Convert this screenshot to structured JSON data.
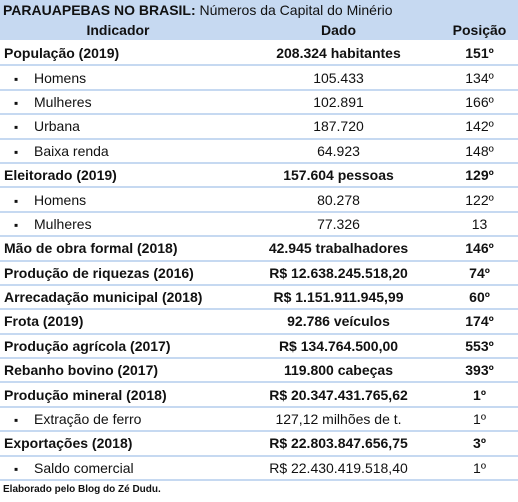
{
  "title": {
    "bold": "PARAUAPEBAS NO BRASIL:",
    "rest": "Números da Capital do Minério"
  },
  "table": {
    "header": [
      "Indicador",
      "Dado",
      "Posição"
    ],
    "groups": [
      {
        "row": [
          "População (2019)",
          "208.324 habitantes",
          "151º"
        ],
        "sub_rows": [
          [
            "Homens",
            "105.433",
            "134º"
          ],
          [
            "Mulheres",
            "102.891",
            "166º"
          ],
          [
            "Urbana",
            "187.720",
            "142º"
          ],
          [
            "Baixa renda",
            "64.923",
            "148º"
          ]
        ]
      },
      {
        "row": [
          "Eleitorado (2019)",
          "157.604 pessoas",
          "129º"
        ],
        "sub_rows": [
          [
            "Homens",
            "80.278",
            "122º"
          ],
          [
            "Mulheres",
            "77.326",
            "13"
          ]
        ]
      },
      {
        "row": [
          "Mão de obra formal (2018)",
          "42.945 trabalhadores",
          "146º"
        ],
        "sub_rows": []
      },
      {
        "row": [
          "Produção de riquezas (2016)",
          "R$ 12.638.245.518,20",
          "74º"
        ],
        "sub_rows": []
      },
      {
        "row": [
          "Arrecadação municipal (2018)",
          "R$ 1.151.911.945,99",
          "60º"
        ],
        "sub_rows": []
      },
      {
        "row": [
          "Frota (2019)",
          "92.786 veículos",
          "174º"
        ],
        "sub_rows": []
      },
      {
        "row": [
          "Produção agrícola (2017)",
          "R$ 134.764.500,00",
          "553º"
        ],
        "sub_rows": []
      },
      {
        "row": [
          "Rebanho bovino (2017)",
          "119.800 cabeças",
          "393º"
        ],
        "sub_rows": []
      },
      {
        "row": [
          "Produção mineral (2018)",
          "R$ 20.347.431.765,62",
          "1º"
        ],
        "sub_rows": [
          [
            "Extração de ferro",
            "127,12 milhões de t.",
            "1º"
          ]
        ]
      },
      {
        "row": [
          "Exportações (2018)",
          "R$ 22.803.847.656,75",
          "3º"
        ],
        "sub_rows": [
          [
            "Saldo comercial",
            "R$ 22.430.419.518,40",
            "1º"
          ]
        ]
      }
    ]
  },
  "footer": "Elaborado pelo Blog do Zé Dudu."
}
